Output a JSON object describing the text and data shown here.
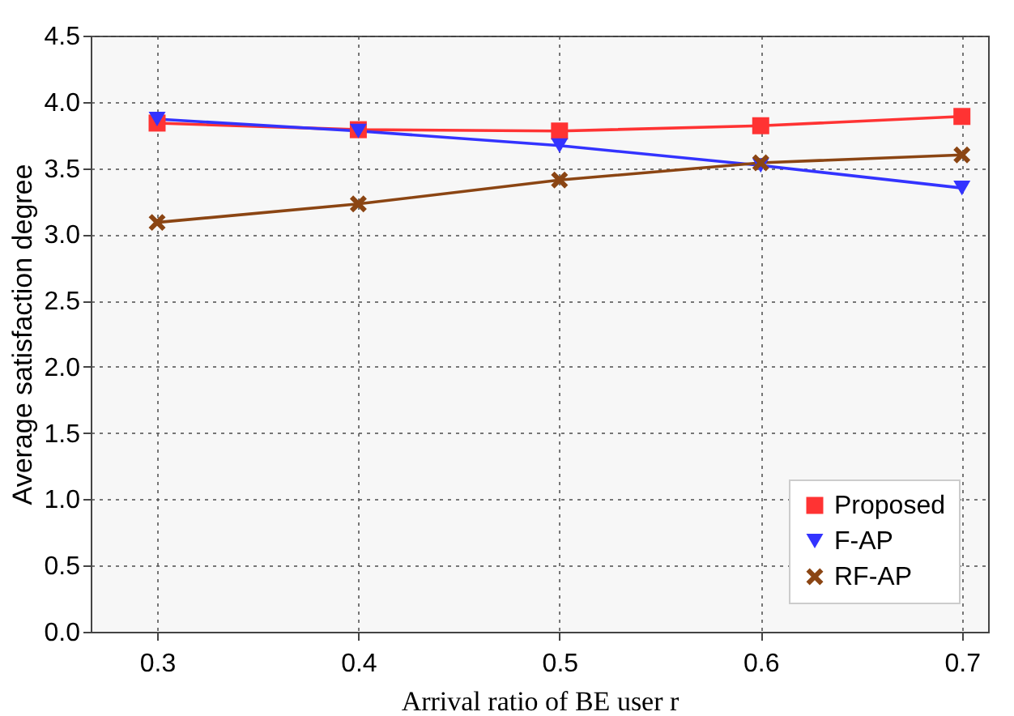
{
  "chart_data": {
    "type": "line",
    "xlabel": "Arrival ratio of BE user r",
    "ylabel": "Average satisfaction degree",
    "x": [
      0.3,
      0.4,
      0.5,
      0.6,
      0.7
    ],
    "series": [
      {
        "name": "Proposed",
        "color": "#ff3333",
        "marker": "square",
        "values": [
          3.84,
          3.79,
          3.78,
          3.82,
          3.89
        ]
      },
      {
        "name": "F-AP",
        "color": "#3333ff",
        "marker": "triangle",
        "values": [
          3.87,
          3.78,
          3.67,
          3.52,
          3.35
        ]
      },
      {
        "name": "RF-AP",
        "color": "#8b4513",
        "marker": "cross",
        "values": [
          3.09,
          3.23,
          3.41,
          3.54,
          3.6
        ]
      }
    ],
    "xlim": [
      0.267,
      0.713
    ],
    "xticks": [
      0.3,
      0.4,
      0.5,
      0.6,
      0.7
    ],
    "ylim": [
      0,
      4.5
    ],
    "yticks": [
      {
        "value": 0,
        "label": "0.0"
      },
      0.5,
      {
        "value": 1,
        "label": "1.0"
      },
      1.5,
      {
        "value": 2,
        "label": "2.0"
      },
      2.5,
      {
        "value": 3,
        "label": "3.0"
      },
      3.5,
      {
        "value": 4,
        "label": "4.0"
      },
      4.5
    ],
    "grid": true,
    "legend": "bottom right"
  }
}
